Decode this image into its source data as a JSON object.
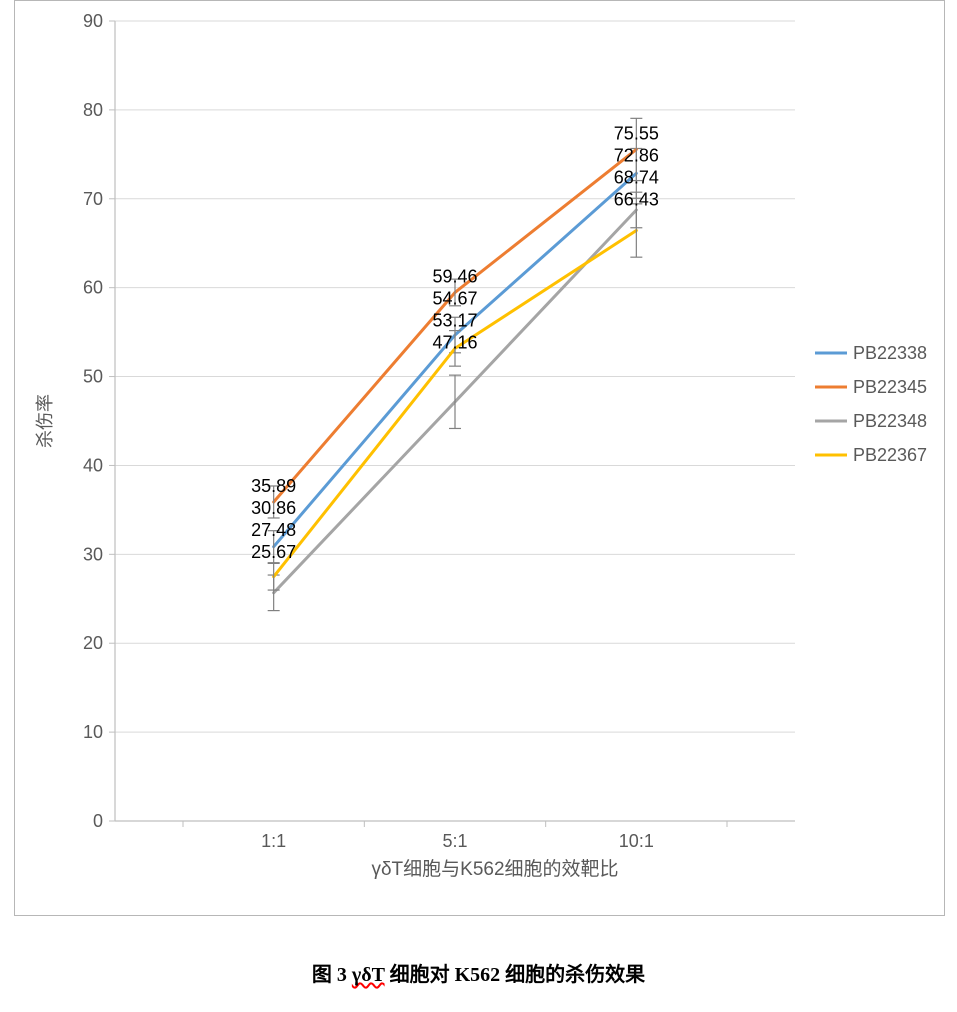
{
  "chart": {
    "type": "line",
    "background_color": "#ffffff",
    "plot_border_color": "#b7b7b7",
    "outer_border_color": "#b7b7b7",
    "grid_color": "#d9d9d9",
    "axis_line_color": "#bfbfbf",
    "tick_color": "#bfbfbf",
    "tick_label_color": "#595959",
    "data_label_color": "#000000",
    "ylabel": "杀伤率",
    "ylabel_fontsize": 18,
    "xlabel": "γδT细胞与K562细胞的效靶比",
    "xlabel_fontsize": 19,
    "categories": [
      "1:1",
      "5:1",
      "10:1"
    ],
    "ylim": [
      0,
      90
    ],
    "ytick_step": 10,
    "legend_fontsize": 18,
    "tick_fontsize": 18,
    "data_label_fontsize": 18,
    "line_width": 3,
    "error_bar_color": "#808080",
    "error_bar_width": 1.2,
    "error_cap": 6,
    "series": [
      {
        "name": "PB22338",
        "color": "#5b9bd5",
        "values": [
          30.86,
          54.67,
          72.86
        ],
        "errors": [
          1.8,
          2.0,
          2.8
        ],
        "label_dy": [
          -12,
          -12,
          -12
        ]
      },
      {
        "name": "PB22345",
        "color": "#ed7d31",
        "values": [
          35.89,
          59.46,
          75.55
        ],
        "errors": [
          1.8,
          1.5,
          3.5
        ],
        "label_dy": [
          -12,
          -12,
          -12
        ]
      },
      {
        "name": "PB22348",
        "color": "#a5a5a5",
        "values": [
          25.67,
          47.16,
          68.74
        ],
        "errors": [
          2.0,
          3.0,
          2.0
        ],
        "label_dy": [
          -12,
          -12,
          -12
        ]
      },
      {
        "name": "PB22367",
        "color": "#ffc000",
        "values": [
          27.48,
          53.17,
          66.43
        ],
        "errors": [
          1.5,
          2.0,
          3.0
        ],
        "label_dy": [
          -12,
          -12,
          -12
        ]
      }
    ],
    "label_overrides": [
      {
        "cat": 0,
        "order": [
          "PB22345",
          "PB22338",
          "PB22367",
          "PB22348"
        ]
      },
      {
        "cat": 1,
        "order": [
          "PB22345",
          "PB22338",
          "PB22367",
          "PB22348"
        ]
      },
      {
        "cat": 2,
        "order": [
          "PB22345",
          "PB22338",
          "PB22348",
          "PB22367"
        ]
      }
    ]
  },
  "caption": {
    "prefix": "图 3 ",
    "underlined": "γδT",
    "suffix": " 细胞对 K562 细胞的杀伤效果"
  }
}
